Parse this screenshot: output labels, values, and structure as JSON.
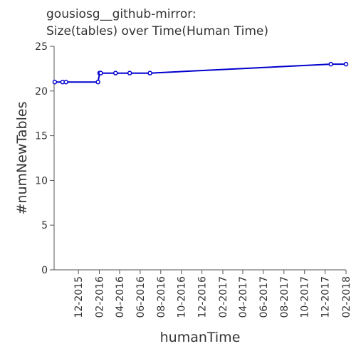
{
  "chart_data": {
    "type": "line",
    "title_line1": "gousiosg__github-mirror:",
    "title_line2": "Size(tables) over Time(Human Time)",
    "xlabel": "humanTime",
    "ylabel": "#numNewTables",
    "ylim": [
      0,
      25
    ],
    "yticks": [
      0,
      5,
      10,
      15,
      20,
      25
    ],
    "xlim": [
      "2015-09-20",
      "2018-02-01"
    ],
    "xticks": [
      "2015-12-01",
      "2016-02-01",
      "2016-04-01",
      "2016-06-01",
      "2016-08-01",
      "2016-10-01",
      "2016-12-01",
      "2017-02-01",
      "2017-04-01",
      "2017-06-01",
      "2017-08-01",
      "2017-10-01",
      "2017-12-01",
      "2018-02-01"
    ],
    "xtick_labels": [
      "12-2015",
      "02-2016",
      "04-2016",
      "06-2016",
      "08-2016",
      "10-2016",
      "12-2016",
      "02-2017",
      "04-2017",
      "06-2017",
      "08-2017",
      "10-2017",
      "12-2017",
      "02-2018"
    ],
    "grid": false,
    "legend": "none",
    "series_color": "#0000cc",
    "points": [
      {
        "x": "2015-09-22",
        "y": 21
      },
      {
        "x": "2015-10-15",
        "y": 21
      },
      {
        "x": "2015-10-25",
        "y": 21
      },
      {
        "x": "2016-01-28",
        "y": 21
      },
      {
        "x": "2016-02-02",
        "y": 22
      },
      {
        "x": "2016-02-05",
        "y": 22
      },
      {
        "x": "2016-03-20",
        "y": 22
      },
      {
        "x": "2016-05-01",
        "y": 22
      },
      {
        "x": "2016-06-30",
        "y": 22
      },
      {
        "x": "2017-12-18",
        "y": 23
      },
      {
        "x": "2018-02-01",
        "y": 23
      }
    ]
  }
}
